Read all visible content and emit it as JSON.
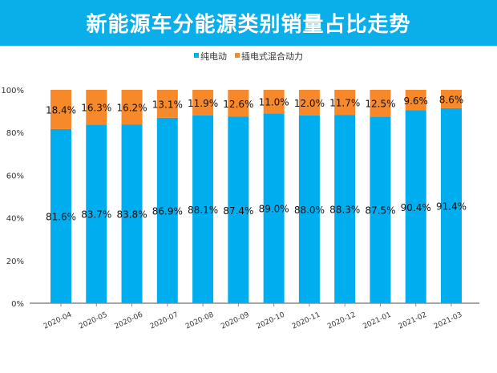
{
  "chart_data": {
    "type": "bar",
    "stacked": true,
    "title": "新能源车分能源类别销量占比走势",
    "categories": [
      "2020-04",
      "2020-05",
      "2020-06",
      "2020-07",
      "2020-08",
      "2020-09",
      "2020-10",
      "2020-11",
      "2020-12",
      "2021-01",
      "2021-02",
      "2021-03"
    ],
    "series": [
      {
        "name": "纯电动",
        "color": "#00aeef",
        "values": [
          81.6,
          83.7,
          83.8,
          86.9,
          88.1,
          87.4,
          89.0,
          88.0,
          88.3,
          87.5,
          90.4,
          91.4
        ]
      },
      {
        "name": "插电式混合动力",
        "color": "#f7892a",
        "values": [
          18.4,
          16.3,
          16.2,
          13.1,
          11.9,
          12.6,
          11.0,
          12.0,
          11.7,
          12.5,
          9.6,
          8.6
        ]
      }
    ],
    "yticks": [
      "0%",
      "20%",
      "40%",
      "60%",
      "80%",
      "100%"
    ],
    "ylim": [
      0,
      100
    ],
    "legend": "top",
    "grid": false
  }
}
